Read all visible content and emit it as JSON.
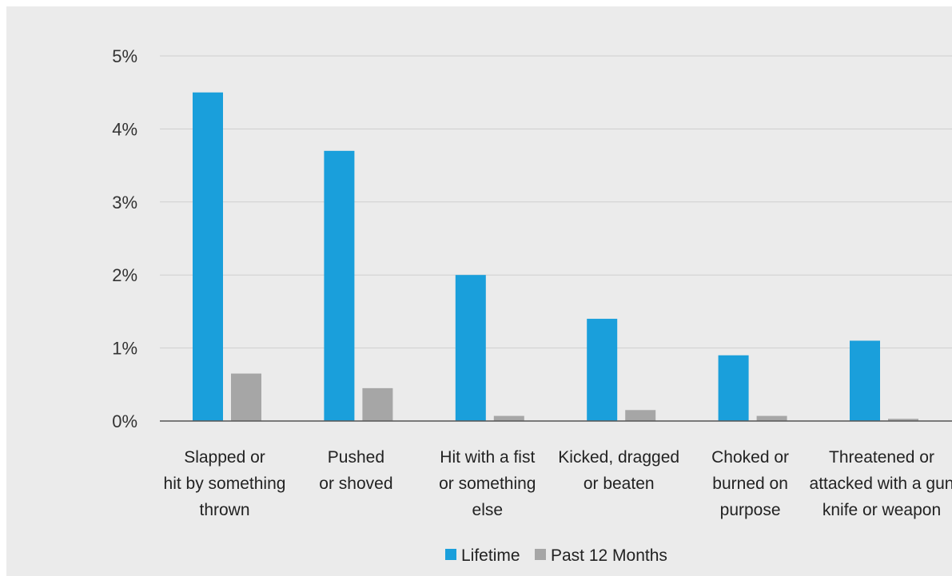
{
  "chart_data": {
    "type": "bar",
    "categories": [
      [
        "Slapped or",
        "hit by something",
        "thrown"
      ],
      [
        "Pushed",
        "or shoved"
      ],
      [
        "Hit with a fist",
        "or something",
        "else"
      ],
      [
        "Kicked, dragged",
        "or beaten"
      ],
      [
        "Choked or",
        "burned on",
        "purpose"
      ],
      [
        "Threatened or",
        "attacked with a gun",
        "knife or weapon"
      ]
    ],
    "series": [
      {
        "name": "Lifetime",
        "color": "#1a9fdb",
        "values": [
          4.5,
          3.7,
          2.0,
          1.4,
          0.9,
          1.1
        ]
      },
      {
        "name": "Past 12 Months",
        "color": "#a6a6a6",
        "values": [
          0.65,
          0.45,
          0.07,
          0.15,
          0.07,
          0.03
        ]
      }
    ],
    "ylim": [
      0,
      5
    ],
    "yticks": [
      0,
      1,
      2,
      3,
      4,
      5
    ],
    "ytick_labels": [
      "0%",
      "1%",
      "2%",
      "3%",
      "4%",
      "5%"
    ],
    "grid": true,
    "legend_position": "bottom-center"
  }
}
